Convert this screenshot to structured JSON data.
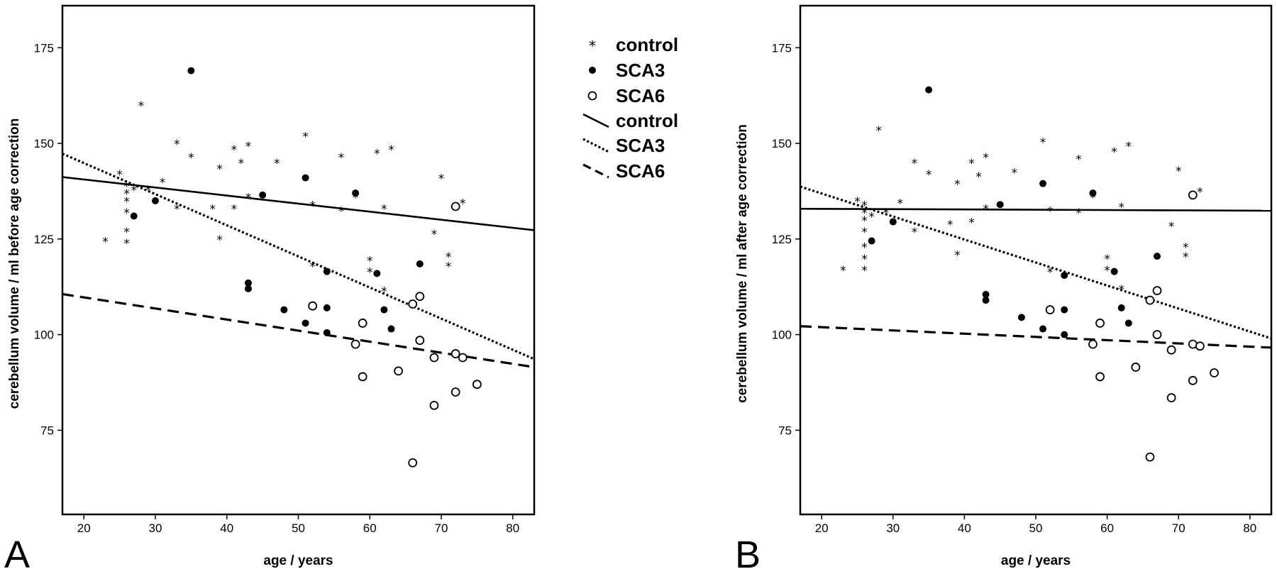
{
  "legend": {
    "items": [
      {
        "label": "control",
        "symbol": "star"
      },
      {
        "label": "SCA3",
        "symbol": "filled-circle"
      },
      {
        "label": "SCA6",
        "symbol": "open-circle"
      },
      {
        "label": "control",
        "symbol": "solid-line"
      },
      {
        "label": "SCA3",
        "symbol": "dotted-line"
      },
      {
        "label": "SCA6",
        "symbol": "dashed-line"
      }
    ]
  },
  "chart_data": [
    {
      "type": "scatter",
      "panel_label": "A",
      "xlabel": "age / years",
      "ylabel": "cerebellum volume / ml before age correction",
      "xlim": [
        17,
        83
      ],
      "ylim": [
        53,
        186
      ],
      "xticks": [
        20,
        30,
        40,
        50,
        60,
        70,
        80
      ],
      "yticks": [
        75,
        100,
        125,
        150,
        175
      ],
      "grid": false,
      "series": [
        {
          "name": "control",
          "marker": "star",
          "points": [
            [
              23,
              124.5
            ],
            [
              25,
              142
            ],
            [
              26,
              139
            ],
            [
              26,
              137
            ],
            [
              26,
              135
            ],
            [
              26,
              132
            ],
            [
              26,
              127
            ],
            [
              26,
              124
            ],
            [
              27,
              138
            ],
            [
              28,
              160
            ],
            [
              29,
              138
            ],
            [
              31,
              140
            ],
            [
              33,
              150
            ],
            [
              33,
              133
            ],
            [
              35,
              146.5
            ],
            [
              38,
              133
            ],
            [
              39,
              143.5
            ],
            [
              39,
              125
            ],
            [
              41,
              148.5
            ],
            [
              41,
              133
            ],
            [
              42,
              145
            ],
            [
              43,
              149.5
            ],
            [
              43,
              136
            ],
            [
              47,
              145
            ],
            [
              51,
              152
            ],
            [
              52,
              134
            ],
            [
              52,
              118
            ],
            [
              56,
              146.5
            ],
            [
              56,
              132.5
            ],
            [
              58,
              136
            ],
            [
              60,
              119.5
            ],
            [
              60,
              116.5
            ],
            [
              61,
              147.5
            ],
            [
              62,
              133
            ],
            [
              62,
              111.5
            ],
            [
              63,
              148.5
            ],
            [
              69,
              126.5
            ],
            [
              70,
              141
            ],
            [
              71,
              120.5
            ],
            [
              71,
              118
            ],
            [
              73,
              134.5
            ]
          ]
        },
        {
          "name": "SCA3",
          "marker": "filled-circle",
          "points": [
            [
              27,
              131
            ],
            [
              30,
              135
            ],
            [
              35,
              169
            ],
            [
              43,
              113.5
            ],
            [
              43,
              112
            ],
            [
              45,
              136.5
            ],
            [
              48,
              106.5
            ],
            [
              51,
              141
            ],
            [
              51,
              103
            ],
            [
              54,
              116.5
            ],
            [
              54,
              107
            ],
            [
              54,
              100.5
            ],
            [
              58,
              137
            ],
            [
              61,
              116
            ],
            [
              62,
              106.5
            ],
            [
              63,
              101.5
            ],
            [
              67,
              118.5
            ]
          ]
        },
        {
          "name": "SCA6",
          "marker": "open-circle",
          "points": [
            [
              52,
              107.5
            ],
            [
              58,
              97.5
            ],
            [
              59,
              103
            ],
            [
              59,
              89
            ],
            [
              64,
              90.5
            ],
            [
              66,
              108
            ],
            [
              66,
              66.5
            ],
            [
              67,
              110
            ],
            [
              67,
              98.5
            ],
            [
              69,
              94
            ],
            [
              69,
              81.5
            ],
            [
              72,
              95
            ],
            [
              72,
              85
            ],
            [
              73,
              94
            ],
            [
              72,
              133.5
            ],
            [
              75,
              87
            ]
          ]
        }
      ],
      "regression_lines": [
        {
          "name": "control",
          "style": "solid",
          "x": [
            17,
            83
          ],
          "y": [
            141.2,
            127.3
          ]
        },
        {
          "name": "SCA3",
          "style": "dotted",
          "x": [
            17,
            83
          ],
          "y": [
            147.3,
            93.6
          ]
        },
        {
          "name": "SCA6",
          "style": "dashed",
          "x": [
            17,
            83
          ],
          "y": [
            110.6,
            91.5
          ]
        }
      ]
    },
    {
      "type": "scatter",
      "panel_label": "B",
      "xlabel": "age / years",
      "ylabel": "cerebellum volume / ml after age correction",
      "xlim": [
        17,
        83
      ],
      "ylim": [
        53,
        186
      ],
      "xticks": [
        20,
        30,
        40,
        50,
        60,
        70,
        80
      ],
      "yticks": [
        75,
        100,
        125,
        150,
        175
      ],
      "grid": false,
      "series": [
        {
          "name": "control",
          "marker": "star",
          "points": [
            [
              23,
              117
            ],
            [
              25,
              135
            ],
            [
              26,
              134
            ],
            [
              26,
              132
            ],
            [
              26,
              130
            ],
            [
              26,
              127
            ],
            [
              26,
              123
            ],
            [
              26,
              120
            ],
            [
              26,
              117
            ],
            [
              27,
              131
            ],
            [
              28,
              153.5
            ],
            [
              29,
              132
            ],
            [
              31,
              134.5
            ],
            [
              33,
              145
            ],
            [
              33,
              127
            ],
            [
              35,
              142
            ],
            [
              38,
              129
            ],
            [
              39,
              139.5
            ],
            [
              39,
              121
            ],
            [
              41,
              145
            ],
            [
              41,
              129.5
            ],
            [
              42,
              141.5
            ],
            [
              43,
              146.5
            ],
            [
              43,
              133
            ],
            [
              47,
              142.5
            ],
            [
              51,
              150.5
            ],
            [
              52,
              132.5
            ],
            [
              52,
              116.5
            ],
            [
              56,
              146
            ],
            [
              56,
              132
            ],
            [
              58,
              136
            ],
            [
              60,
              120
            ],
            [
              60,
              117
            ],
            [
              61,
              148
            ],
            [
              62,
              133.5
            ],
            [
              62,
              112
            ],
            [
              63,
              149.5
            ],
            [
              69,
              128.5
            ],
            [
              70,
              143
            ],
            [
              71,
              123
            ],
            [
              71,
              120.5
            ],
            [
              73,
              137.5
            ]
          ]
        },
        {
          "name": "SCA3",
          "marker": "filled-circle",
          "points": [
            [
              27,
              124.5
            ],
            [
              30,
              129.5
            ],
            [
              35,
              164
            ],
            [
              43,
              110.5
            ],
            [
              43,
              109
            ],
            [
              45,
              134
            ],
            [
              48,
              104.5
            ],
            [
              51,
              139.5
            ],
            [
              51,
              101.5
            ],
            [
              54,
              115.5
            ],
            [
              54,
              106.5
            ],
            [
              54,
              100
            ],
            [
              58,
              137
            ],
            [
              61,
              116.5
            ],
            [
              62,
              107
            ],
            [
              63,
              103
            ],
            [
              67,
              120.5
            ]
          ]
        },
        {
          "name": "SCA6",
          "marker": "open-circle",
          "points": [
            [
              52,
              106.5
            ],
            [
              58,
              97.5
            ],
            [
              59,
              103
            ],
            [
              59,
              89
            ],
            [
              64,
              91.5
            ],
            [
              66,
              109
            ],
            [
              66,
              68
            ],
            [
              67,
              111.5
            ],
            [
              67,
              100
            ],
            [
              69,
              96
            ],
            [
              69,
              83.5
            ],
            [
              72,
              97.5
            ],
            [
              72,
              88
            ],
            [
              73,
              97
            ],
            [
              72,
              136.5
            ],
            [
              75,
              90
            ]
          ]
        }
      ],
      "regression_lines": [
        {
          "name": "control",
          "style": "solid",
          "x": [
            17,
            83
          ],
          "y": [
            132.9,
            132.4
          ]
        },
        {
          "name": "SCA3",
          "style": "dotted",
          "x": [
            17,
            83
          ],
          "y": [
            138.7,
            99.0
          ]
        },
        {
          "name": "SCA6",
          "style": "dashed",
          "x": [
            17,
            83
          ],
          "y": [
            102.2,
            96.6
          ]
        }
      ]
    }
  ]
}
